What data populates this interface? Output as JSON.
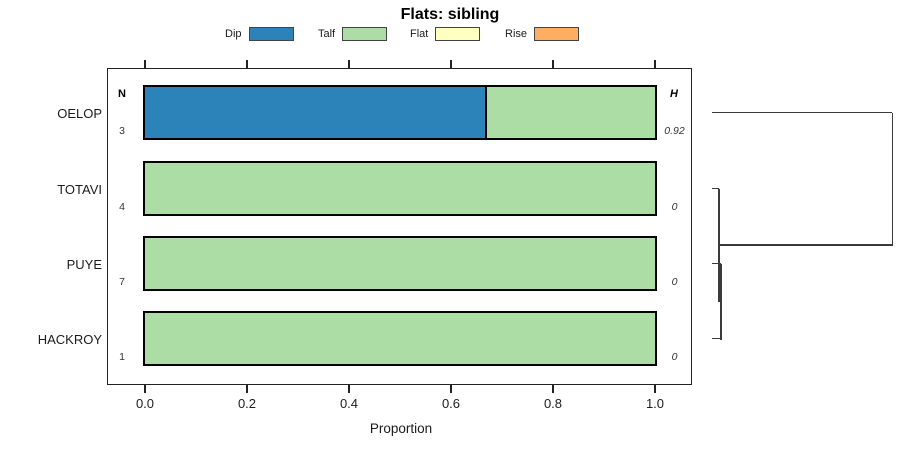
{
  "title": "Flats: sibling",
  "legend": {
    "items": [
      {
        "label": "Dip",
        "color": "#2B83BA"
      },
      {
        "label": "Talf",
        "color": "#ABDDA4"
      },
      {
        "label": "Flat",
        "color": "#FFFFBF"
      },
      {
        "label": "Rise",
        "color": "#FDAE61"
      }
    ]
  },
  "columns": {
    "n_header": "N",
    "h_header": "H"
  },
  "chart_data": {
    "type": "bar",
    "orientation": "horizontal",
    "stacked": true,
    "title": "Flats: sibling",
    "xlabel": "Proportion",
    "xlim": [
      0,
      1.0
    ],
    "x_tick_values": [
      0,
      0.2,
      0.4,
      0.6,
      0.8,
      1.0
    ],
    "x_tick_labels": [
      "0.0",
      "0.2",
      "0.4",
      "0.6",
      "0.8",
      "1.0"
    ],
    "categories": [
      "OELOP",
      "TOTAVI",
      "PUYE",
      "HACKROY"
    ],
    "rows": [
      {
        "category": "OELOP",
        "n": 3,
        "h": "0.92",
        "segments": [
          {
            "name": "Dip",
            "value": 0.667
          },
          {
            "name": "Talf",
            "value": 0.333
          }
        ]
      },
      {
        "category": "TOTAVI",
        "n": 4,
        "h": "0",
        "segments": [
          {
            "name": "Talf",
            "value": 1
          }
        ]
      },
      {
        "category": "PUYE",
        "n": 7,
        "h": "0",
        "segments": [
          {
            "name": "Talf",
            "value": 1
          }
        ]
      },
      {
        "category": "HACKROY",
        "n": 1,
        "h": "0",
        "segments": [
          {
            "name": "Talf",
            "value": 1
          }
        ]
      }
    ],
    "series": [
      {
        "name": "Dip",
        "values": [
          0.667,
          0,
          0,
          0
        ]
      },
      {
        "name": "Talf",
        "values": [
          0.333,
          1,
          1,
          1
        ]
      },
      {
        "name": "Flat",
        "values": [
          0,
          0,
          0,
          0
        ]
      },
      {
        "name": "Rise",
        "values": [
          0,
          0,
          0,
          0
        ]
      }
    ],
    "dendrogram": {
      "axis": "height",
      "max_height": 0.92,
      "merges": [
        {
          "left": {
            "type": "leaf",
            "row": 2
          },
          "right": {
            "type": "leaf",
            "row": 3
          },
          "height": 0.045
        },
        {
          "left": {
            "type": "leaf",
            "row": 1
          },
          "right": {
            "type": "merge",
            "index": 0
          },
          "height": 0.035
        },
        {
          "left": {
            "type": "leaf",
            "row": 0
          },
          "right": {
            "type": "merge",
            "index": 1
          },
          "height": 0.92
        }
      ]
    }
  }
}
